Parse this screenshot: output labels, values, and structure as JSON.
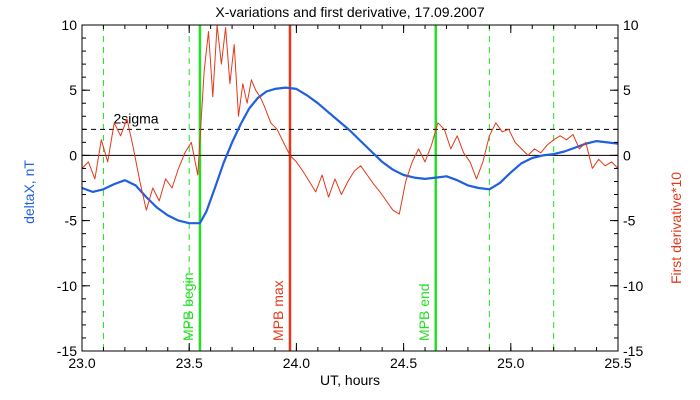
{
  "chart_data": {
    "type": "line",
    "title": "X-variations and first derivative, 17.09.2007",
    "xlabel": "UT, hours",
    "ylabel_left": "deltaX, nT",
    "ylabel_right": "First derivative*10",
    "xlim": [
      23.0,
      25.5
    ],
    "ylim": [
      -15,
      10
    ],
    "x_ticks": [
      "23.0",
      "23.5",
      "24.0",
      "24.5",
      "25.0",
      "25.5"
    ],
    "y_ticks": [
      "-15",
      "-10",
      "-5",
      "0",
      "5",
      "10"
    ],
    "colors": {
      "deltaX": "#1f5fe0",
      "derivative": "#e23a1a",
      "mpb_boundary": "#22e022",
      "mpb_max": "#e23a1a",
      "threshold": "#000000"
    },
    "threshold": {
      "label": "2sigma",
      "y": 2
    },
    "zero_line": 0,
    "vertical_lines": [
      {
        "label": "MPB begin",
        "x": 23.55,
        "style": "solid",
        "color": "#22e022"
      },
      {
        "label": "MPB max",
        "x": 23.97,
        "style": "solid",
        "color": "#e23a1a"
      },
      {
        "label": "MPB end",
        "x": 24.65,
        "style": "solid",
        "color": "#22e022"
      },
      {
        "label": "",
        "x": 23.1,
        "style": "dashed",
        "color": "#22e022"
      },
      {
        "label": "",
        "x": 23.5,
        "style": "dashed",
        "color": "#22e022"
      },
      {
        "label": "",
        "x": 24.9,
        "style": "dashed",
        "color": "#22e022"
      },
      {
        "label": "",
        "x": 25.2,
        "style": "dashed",
        "color": "#22e022"
      }
    ],
    "series": [
      {
        "key": "deltaX",
        "axis": "left",
        "x": [
          23.0,
          23.05,
          23.1,
          23.15,
          23.2,
          23.25,
          23.3,
          23.35,
          23.4,
          23.45,
          23.5,
          23.55,
          23.58,
          23.62,
          23.66,
          23.7,
          23.74,
          23.78,
          23.82,
          23.86,
          23.9,
          23.95,
          24.0,
          24.05,
          24.1,
          24.15,
          24.2,
          24.25,
          24.3,
          24.35,
          24.4,
          24.45,
          24.5,
          24.55,
          24.6,
          24.65,
          24.7,
          24.75,
          24.8,
          24.85,
          24.9,
          24.95,
          25.0,
          25.05,
          25.1,
          25.15,
          25.2,
          25.25,
          25.3,
          25.35,
          25.4,
          25.45,
          25.5
        ],
        "values": [
          -2.5,
          -2.8,
          -2.6,
          -2.2,
          -1.9,
          -2.3,
          -3.2,
          -4.0,
          -4.6,
          -5.0,
          -5.2,
          -5.2,
          -4.3,
          -2.5,
          -0.6,
          1.0,
          2.4,
          3.6,
          4.4,
          4.9,
          5.1,
          5.2,
          5.1,
          4.6,
          4.0,
          3.3,
          2.6,
          1.9,
          1.1,
          0.3,
          -0.5,
          -1.1,
          -1.5,
          -1.7,
          -1.8,
          -1.7,
          -1.6,
          -1.9,
          -2.3,
          -2.5,
          -2.6,
          -2.1,
          -1.3,
          -0.6,
          -0.2,
          0.0,
          0.1,
          0.3,
          0.6,
          0.9,
          1.1,
          1.0,
          0.9
        ]
      },
      {
        "key": "derivative",
        "axis": "right",
        "x": [
          23.0,
          23.03,
          23.06,
          23.09,
          23.12,
          23.15,
          23.18,
          23.21,
          23.24,
          23.27,
          23.3,
          23.33,
          23.36,
          23.39,
          23.42,
          23.45,
          23.48,
          23.51,
          23.54,
          23.57,
          23.59,
          23.61,
          23.63,
          23.65,
          23.67,
          23.69,
          23.71,
          23.73,
          23.75,
          23.77,
          23.79,
          23.81,
          23.83,
          23.85,
          23.88,
          23.91,
          23.94,
          23.97,
          24.0,
          24.03,
          24.06,
          24.09,
          24.12,
          24.15,
          24.18,
          24.21,
          24.24,
          24.27,
          24.3,
          24.33,
          24.36,
          24.39,
          24.42,
          24.45,
          24.48,
          24.51,
          24.54,
          24.57,
          24.6,
          24.63,
          24.66,
          24.69,
          24.72,
          24.75,
          24.78,
          24.81,
          24.84,
          24.87,
          24.9,
          24.93,
          24.96,
          24.99,
          25.02,
          25.05,
          25.08,
          25.11,
          25.14,
          25.17,
          25.2,
          25.23,
          25.26,
          25.29,
          25.32,
          25.35,
          25.38,
          25.41,
          25.44,
          25.47,
          25.5
        ],
        "values": [
          -1.0,
          -0.5,
          -1.8,
          1.2,
          -0.5,
          2.5,
          1.5,
          2.8,
          0.5,
          -2.0,
          -4.2,
          -2.5,
          -3.5,
          -1.8,
          -2.5,
          -1.0,
          0.2,
          1.0,
          -1.5,
          6.5,
          9.5,
          4.5,
          10.0,
          7.0,
          9.8,
          5.5,
          8.5,
          3.0,
          5.5,
          4.0,
          5.8,
          5.0,
          4.5,
          3.8,
          2.5,
          2.0,
          1.0,
          0.0,
          -0.5,
          -1.2,
          -2.0,
          -2.8,
          -1.5,
          -3.2,
          -1.8,
          -3.0,
          -2.0,
          -1.2,
          -0.8,
          -1.5,
          -2.2,
          -2.8,
          -3.5,
          -4.2,
          -4.5,
          -2.0,
          -0.5,
          0.5,
          -0.5,
          0.8,
          2.5,
          2.0,
          0.5,
          1.5,
          0.2,
          -0.5,
          -1.8,
          -0.5,
          1.5,
          2.5,
          1.8,
          2.0,
          1.0,
          0.5,
          0.0,
          0.5,
          0.2,
          0.8,
          1.2,
          1.5,
          1.2,
          1.6,
          0.5,
          1.0,
          -1.0,
          -0.3,
          -0.8,
          -0.5,
          -1.0
        ]
      }
    ]
  }
}
